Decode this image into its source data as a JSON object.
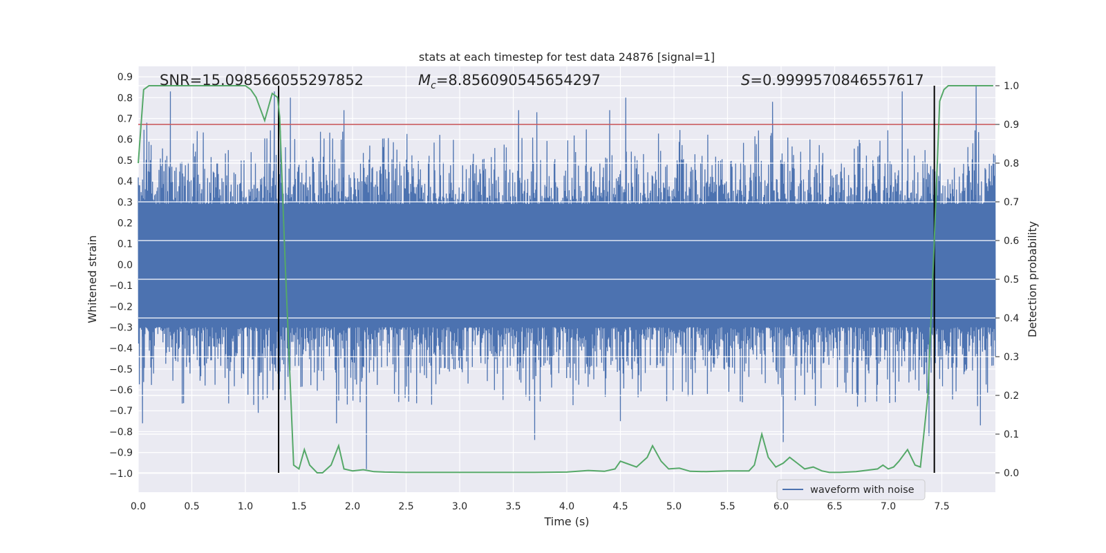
{
  "chart_data": {
    "type": "line",
    "title": "stats at each timestep for test data 24876 [signal=1]",
    "xlabel": "Time (s)",
    "ylabel_left": "Whitened strain",
    "ylabel_right": "Detection probability",
    "xlim": [
      0.0,
      8.0
    ],
    "ylim_left": [
      -1.09,
      0.95
    ],
    "ylim_right": [
      -0.05,
      1.05
    ],
    "xticks": [
      "0.0",
      "0.5",
      "1.0",
      "1.5",
      "2.0",
      "2.5",
      "3.0",
      "3.5",
      "4.0",
      "4.5",
      "5.0",
      "5.5",
      "6.0",
      "6.5",
      "7.0",
      "7.5"
    ],
    "yticks_left": [
      "0.9",
      "0.8",
      "0.7",
      "0.6",
      "0.5",
      "0.4",
      "0.3",
      "0.2",
      "0.1",
      "0.0",
      "−0.1",
      "−0.2",
      "−0.3",
      "−0.4",
      "−0.5",
      "−0.6",
      "−0.7",
      "−0.8",
      "−0.9",
      "−1.0"
    ],
    "yticks_right": [
      "1.0",
      "0.9",
      "0.8",
      "0.7",
      "0.6",
      "0.5",
      "0.4",
      "0.3",
      "0.2",
      "0.1",
      "0.0"
    ],
    "annotations": {
      "snr": "SNR=15.098566055297852",
      "mc_symbol": "M",
      "mc_sub": "c",
      "mc_value": "=8.856090545654297",
      "s_symbol": "S",
      "s_value": "=0.9999570846557617"
    },
    "legend": {
      "label": "waveform with noise",
      "placement": "lower-right"
    },
    "threshold_line": {
      "axis": "right",
      "value": 0.9,
      "color": "#c44e52"
    },
    "event_markers": {
      "x": [
        1.31,
        7.43
      ],
      "y_range_right": [
        0.0,
        1.0
      ]
    },
    "series": [
      {
        "name": "waveform with noise",
        "axis": "left",
        "kind": "dense-noise",
        "color": "#4c72b0",
        "x_range": [
          0.0,
          8.0
        ],
        "band": [
          -0.3,
          0.29
        ],
        "peaks": [
          {
            "x": 0.08,
            "y": 0.68
          },
          {
            "x": 0.3,
            "y": 0.83
          },
          {
            "x": 0.55,
            "y": 0.64
          },
          {
            "x": 1.27,
            "y": 0.83
          },
          {
            "x": 1.42,
            "y": 0.8
          },
          {
            "x": 1.92,
            "y": 0.74
          },
          {
            "x": 3.55,
            "y": 0.74
          },
          {
            "x": 3.72,
            "y": 0.73
          },
          {
            "x": 4.4,
            "y": 0.74
          },
          {
            "x": 4.55,
            "y": 0.8
          },
          {
            "x": 5.92,
            "y": 0.78
          },
          {
            "x": 7.13,
            "y": 0.83
          },
          {
            "x": 7.82,
            "y": 0.86
          }
        ],
        "troughs": [
          {
            "x": 0.04,
            "y": -0.76
          },
          {
            "x": 1.12,
            "y": -0.71
          },
          {
            "x": 1.85,
            "y": -0.76
          },
          {
            "x": 2.13,
            "y": -0.98
          },
          {
            "x": 3.7,
            "y": -0.84
          },
          {
            "x": 4.5,
            "y": -0.75
          },
          {
            "x": 6.02,
            "y": -0.85
          },
          {
            "x": 7.38,
            "y": -0.82
          },
          {
            "x": 7.86,
            "y": -0.77
          }
        ]
      },
      {
        "name": "detection probability",
        "axis": "right",
        "color": "#55a868",
        "x": [
          0.0,
          0.05,
          0.1,
          0.2,
          0.3,
          0.4,
          0.5,
          0.6,
          0.7,
          0.8,
          0.9,
          1.0,
          1.05,
          1.1,
          1.18,
          1.25,
          1.3,
          1.32,
          1.37,
          1.45,
          1.5,
          1.55,
          1.6,
          1.67,
          1.72,
          1.8,
          1.87,
          1.92,
          2.0,
          2.1,
          2.2,
          2.3,
          2.5,
          2.8,
          3.1,
          3.4,
          3.7,
          4.0,
          4.2,
          4.35,
          4.45,
          4.5,
          4.55,
          4.65,
          4.75,
          4.8,
          4.88,
          4.95,
          5.05,
          5.15,
          5.3,
          5.5,
          5.7,
          5.75,
          5.82,
          5.88,
          5.95,
          6.02,
          6.08,
          6.15,
          6.22,
          6.3,
          6.38,
          6.45,
          6.55,
          6.7,
          6.9,
          6.95,
          7.0,
          7.05,
          7.1,
          7.18,
          7.25,
          7.3,
          7.37,
          7.43,
          7.48,
          7.52,
          7.56,
          7.62,
          7.7,
          7.8,
          7.9,
          7.98
        ],
        "y": [
          0.8,
          0.99,
          1.0,
          1.0,
          1.0,
          1.0,
          1.0,
          1.0,
          1.0,
          1.0,
          1.0,
          1.0,
          0.99,
          0.97,
          0.91,
          0.98,
          0.97,
          0.92,
          0.55,
          0.02,
          0.01,
          0.06,
          0.02,
          0.0,
          0.0,
          0.02,
          0.07,
          0.01,
          0.005,
          0.008,
          0.003,
          0.002,
          0.001,
          0.001,
          0.001,
          0.001,
          0.001,
          0.002,
          0.006,
          0.004,
          0.01,
          0.03,
          0.025,
          0.015,
          0.04,
          0.07,
          0.03,
          0.01,
          0.012,
          0.004,
          0.003,
          0.005,
          0.005,
          0.02,
          0.1,
          0.04,
          0.015,
          0.025,
          0.04,
          0.025,
          0.01,
          0.015,
          0.005,
          0.001,
          0.001,
          0.003,
          0.01,
          0.02,
          0.01,
          0.015,
          0.03,
          0.06,
          0.02,
          0.015,
          0.2,
          0.6,
          0.96,
          0.99,
          1.0,
          1.0,
          1.0,
          1.0,
          1.0,
          1.0
        ]
      }
    ]
  }
}
